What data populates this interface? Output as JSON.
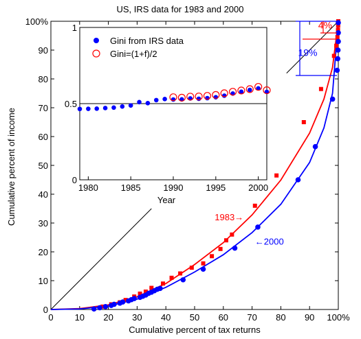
{
  "chart_data": [
    {
      "type": "scatter",
      "title": "US, IRS data for 1983 and 2000",
      "xlabel": "Cumulative percent of tax returns",
      "ylabel": "Cumulative percent of income",
      "xlim": [
        0,
        100
      ],
      "ylim": [
        0,
        100
      ],
      "x_ticks": [
        "0",
        "10",
        "20",
        "30",
        "40",
        "50",
        "60",
        "70",
        "80",
        "90",
        "100%"
      ],
      "y_ticks": [
        "0",
        "10",
        "20",
        "30",
        "40",
        "50",
        "60",
        "70",
        "80",
        "90",
        "100%"
      ],
      "grid": false,
      "colors": {
        "y1983": "#ff0000",
        "y2000": "#0000ff",
        "reference": "#000000"
      },
      "series": [
        {
          "name": "1983→",
          "marker": "square",
          "color": "#ff0000",
          "points": [
            [
              15,
              0.3
            ],
            [
              18,
              1
            ],
            [
              21,
              1.8
            ],
            [
              24,
              2.5
            ],
            [
              26,
              3.3
            ],
            [
              29,
              4.5
            ],
            [
              31,
              5.5
            ],
            [
              33,
              6.2
            ],
            [
              35,
              7.5
            ],
            [
              39,
              9
            ],
            [
              42,
              11
            ],
            [
              45,
              12.5
            ],
            [
              49,
              14.5
            ],
            [
              53,
              16
            ],
            [
              56,
              18.5
            ],
            [
              59,
              21
            ],
            [
              61,
              24
            ],
            [
              63,
              26
            ],
            [
              71,
              36
            ],
            [
              78.5,
              46.5
            ],
            [
              88,
              65
            ],
            [
              94,
              76.5
            ],
            [
              98.5,
              88
            ],
            [
              99.3,
              91.5
            ],
            [
              99.7,
              94.5
            ],
            [
              99.9,
              97
            ],
            [
              99.95,
              98.5
            ],
            [
              100,
              100
            ]
          ]
        },
        {
          "name": "←2000",
          "marker": "circle",
          "color": "#0000ff",
          "points": [
            [
              15,
              0.2
            ],
            [
              17,
              0.6
            ],
            [
              19,
              1
            ],
            [
              21,
              1.4
            ],
            [
              22,
              1.8
            ],
            [
              24,
              2.2
            ],
            [
              25,
              2.6
            ],
            [
              27,
              3
            ],
            [
              28,
              3.4
            ],
            [
              29,
              3.8
            ],
            [
              31,
              4.2
            ],
            [
              32,
              4.6
            ],
            [
              33,
              5
            ],
            [
              34,
              5.6
            ],
            [
              35,
              6
            ],
            [
              36,
              6.5
            ],
            [
              37,
              7
            ],
            [
              38,
              7.3
            ],
            [
              46,
              10.3
            ],
            [
              53,
              14
            ],
            [
              64,
              21.3
            ],
            [
              72,
              28.6
            ],
            [
              86,
              45
            ],
            [
              92,
              56.5
            ],
            [
              98,
              73
            ],
            [
              99.6,
              83
            ],
            [
              99.8,
              87
            ],
            [
              99.9,
              90
            ],
            [
              100,
              93
            ],
            [
              100,
              96
            ],
            [
              100,
              99.5
            ]
          ]
        }
      ],
      "fit_curves": [
        {
          "name": "1983 fit",
          "color": "#ff0000",
          "points": [
            [
              0,
              0
            ],
            [
              10,
              0.3
            ],
            [
              20,
              1.6
            ],
            [
              30,
              4.4
            ],
            [
              40,
              9
            ],
            [
              50,
              15.6
            ],
            [
              60,
              23.2
            ],
            [
              70,
              32.8
            ],
            [
              80,
              44.9
            ],
            [
              90,
              61.2
            ],
            [
              95,
              73
            ],
            [
              98,
              84
            ],
            [
              100,
              100
            ]
          ]
        },
        {
          "name": "2000 fit",
          "color": "#0000ff",
          "points": [
            [
              0,
              0
            ],
            [
              10,
              0.2
            ],
            [
              20,
              1.2
            ],
            [
              30,
              3.6
            ],
            [
              40,
              7.7
            ],
            [
              50,
              13
            ],
            [
              60,
              19
            ],
            [
              70,
              26.7
            ],
            [
              80,
              36.5
            ],
            [
              90,
              51
            ],
            [
              95,
              63
            ],
            [
              98,
              75
            ],
            [
              100,
              100
            ]
          ]
        }
      ],
      "reference_lines": [
        {
          "from": [
            0,
            0
          ],
          "to": [
            35,
            35
          ]
        },
        {
          "from": [
            82,
            82
          ],
          "to": [
            100,
            100
          ]
        }
      ],
      "annotations": [
        {
          "text": "1983→",
          "x": 57,
          "y": 31,
          "color": "#ff0000"
        },
        {
          "text": "←2000",
          "x": 71,
          "y": 22.5,
          "color": "#0000ff"
        },
        {
          "text": "19%",
          "x": 86,
          "y": 88,
          "color": "#0000ff"
        },
        {
          "text": "4%",
          "x": 93,
          "y": 97.5,
          "color": "#ff0000"
        }
      ]
    },
    {
      "type": "scatter",
      "xlabel": "Year",
      "xlim": [
        1979,
        2001
      ],
      "ylim": [
        0,
        1
      ],
      "x_ticks": [
        "1980",
        "1985",
        "1990",
        "1995",
        "2000"
      ],
      "y_ticks": [
        "0",
        "0.5",
        "1"
      ],
      "grid": false,
      "legend_position": "top-left",
      "reference_value": 0.5,
      "series": [
        {
          "name": "Gini from IRS data",
          "marker": "filled-circle",
          "color": "#0000ff",
          "points": [
            [
              1979,
              0.465
            ],
            [
              1980,
              0.466
            ],
            [
              1981,
              0.467
            ],
            [
              1982,
              0.471
            ],
            [
              1983,
              0.474
            ],
            [
              1984,
              0.481
            ],
            [
              1985,
              0.488
            ],
            [
              1986,
              0.51
            ],
            [
              1987,
              0.503
            ],
            [
              1988,
              0.523
            ],
            [
              1989,
              0.53
            ],
            [
              1990,
              0.527
            ],
            [
              1991,
              0.528
            ],
            [
              1992,
              0.534
            ],
            [
              1993,
              0.532
            ],
            [
              1994,
              0.536
            ],
            [
              1995,
              0.542
            ],
            [
              1996,
              0.552
            ],
            [
              1997,
              0.566
            ],
            [
              1998,
              0.578
            ],
            [
              1999,
              0.59
            ],
            [
              2000,
              0.6
            ],
            [
              2001,
              0.577
            ]
          ]
        },
        {
          "name": "Gini=(1+f)/2",
          "marker": "open-circle",
          "color": "#ff0000",
          "points": [
            [
              1990,
              0.542
            ],
            [
              1991,
              0.539
            ],
            [
              1992,
              0.546
            ],
            [
              1993,
              0.547
            ],
            [
              1994,
              0.551
            ],
            [
              1995,
              0.557
            ],
            [
              1996,
              0.568
            ],
            [
              1997,
              0.578
            ],
            [
              1998,
              0.586
            ],
            [
              1999,
              0.595
            ],
            [
              2000,
              0.61
            ],
            [
              2001,
              0.588
            ]
          ]
        }
      ]
    }
  ]
}
